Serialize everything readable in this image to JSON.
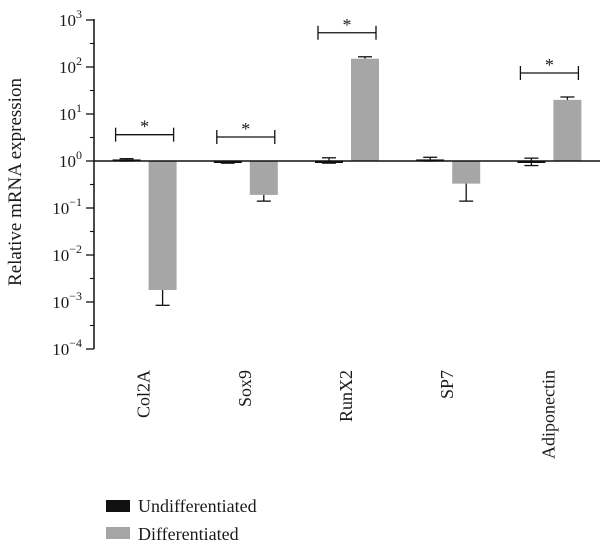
{
  "chart_data": {
    "type": "bar",
    "ylabel": "Relative mRNA expression",
    "xlabel": "",
    "yscale": "log",
    "ylim": [
      0.0001,
      1000
    ],
    "baseline": 1,
    "yticks": [
      {
        "value": 1000,
        "base": "10",
        "exp": "3"
      },
      {
        "value": 100,
        "base": "10",
        "exp": "2"
      },
      {
        "value": 10,
        "base": "10",
        "exp": "1"
      },
      {
        "value": 1,
        "base": "10",
        "exp": "0"
      },
      {
        "value": 0.1,
        "base": "10",
        "exp": "−1"
      },
      {
        "value": 0.01,
        "base": "10",
        "exp": "−2"
      },
      {
        "value": 0.001,
        "base": "10",
        "exp": "−3"
      },
      {
        "value": 0.0001,
        "base": "10",
        "exp": "−4"
      }
    ],
    "categories": [
      "Col2A",
      "Sox9",
      "RunX2",
      "SP7",
      "Adiponectin"
    ],
    "series": [
      {
        "name": "Undifferentiated",
        "color": "#111111",
        "values": [
          1.08,
          0.93,
          1.0,
          1.08,
          1.0
        ],
        "err_lo": [
          1.0,
          0.9,
          0.9,
          1.0,
          0.8
        ],
        "err_hi": [
          1.12,
          0.97,
          1.17,
          1.2,
          1.15
        ]
      },
      {
        "name": "Differentiated",
        "color": "#a6a6a6",
        "values": [
          0.0018,
          0.19,
          150,
          0.33,
          20
        ],
        "err_lo": [
          0.00085,
          0.14,
          150,
          0.14,
          20
        ],
        "err_hi": [
          0.0018,
          0.19,
          165,
          0.33,
          23
        ]
      }
    ],
    "significance": [
      {
        "category": "Col2A",
        "label": "*"
      },
      {
        "category": "Sox9",
        "label": "*"
      },
      {
        "category": "RunX2",
        "label": "*"
      },
      {
        "category": "Adiponectin",
        "label": "*"
      }
    ],
    "legend_position": "bottom-left",
    "grid": false
  }
}
